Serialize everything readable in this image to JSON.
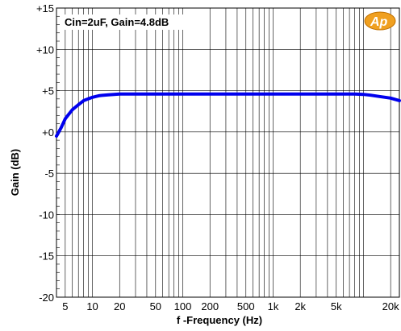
{
  "chart_data": {
    "type": "line",
    "title": "",
    "annotation": "Cin=2uF, Gain=4.8dB",
    "xlabel": "f -Frequency (Hz)",
    "ylabel": "Gain (dB)",
    "xscale": "log",
    "xlim": [
      4,
      25000
    ],
    "ylim": [
      -20,
      15
    ],
    "grid": true,
    "x_ticks": [
      5,
      10,
      20,
      50,
      100,
      200,
      500,
      1000,
      2000,
      5000,
      20000
    ],
    "x_tick_labels": [
      "5",
      "10",
      "20",
      "50",
      "100",
      "200",
      "500",
      "1k",
      "2k",
      "5k",
      "20k"
    ],
    "y_ticks": [
      15,
      10,
      5,
      0,
      -5,
      -10,
      -15,
      -20
    ],
    "y_tick_labels": [
      "+15",
      "+10",
      "+5",
      "+0",
      "-5",
      "-10",
      "-15",
      "-20"
    ],
    "series": [
      {
        "color": "#0000ee",
        "x": [
          4,
          4.5,
          5,
          6,
          7,
          8,
          10,
          12,
          15,
          20,
          30,
          50,
          100,
          200,
          500,
          1000,
          2000,
          5000,
          8000,
          10000,
          12000,
          15000,
          20000,
          25000
        ],
        "y": [
          -0.5,
          0.5,
          1.6,
          2.7,
          3.3,
          3.8,
          4.2,
          4.4,
          4.5,
          4.6,
          4.6,
          4.6,
          4.6,
          4.6,
          4.6,
          4.6,
          4.6,
          4.6,
          4.6,
          4.55,
          4.45,
          4.3,
          4.1,
          3.8
        ]
      }
    ]
  },
  "logo": {
    "text": "Ap",
    "color": "#f0a020"
  }
}
